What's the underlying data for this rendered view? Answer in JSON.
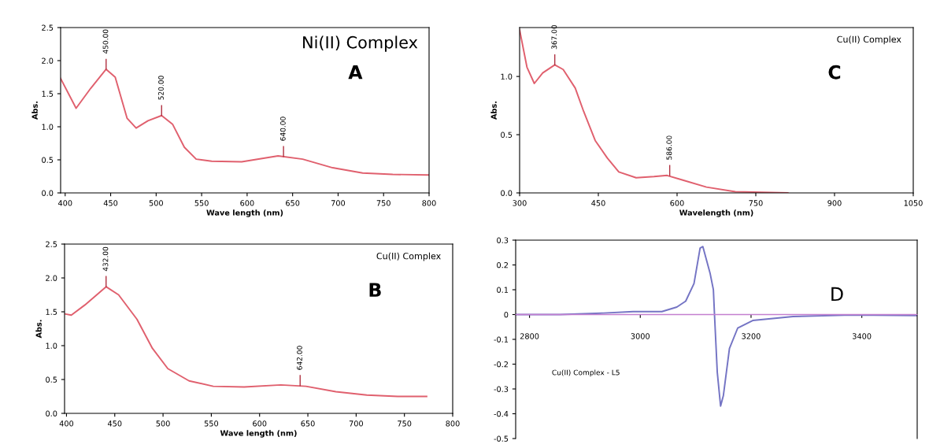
{
  "chart_data": [
    {
      "type": "line",
      "title": "Ni(II) Complex",
      "xlabel": "Wave length (nm)",
      "ylabel": "Abs.",
      "xlim": [
        395,
        800
      ],
      "xticks": [
        400,
        450,
        500,
        550,
        600,
        650,
        700,
        750,
        800
      ],
      "ylim": [
        0,
        2.5
      ],
      "yticks": [
        {
          "value": 0,
          "label": "0.0"
        },
        0.5,
        {
          "value": 1,
          "label": "1.0"
        },
        1.5,
        {
          "value": 2,
          "label": "2.0"
        },
        2.5
      ],
      "grid": false,
      "legend": false,
      "marker": "none",
      "line_style": "solid",
      "series": [
        {
          "color": "#e0606e",
          "x": [
            395,
            412,
            428,
            445,
            455,
            468,
            478,
            491,
            506,
            518,
            531,
            544,
            561,
            594,
            634,
            661,
            694,
            727,
            760,
            800
          ],
          "values": [
            1.73,
            1.28,
            1.58,
            1.87,
            1.75,
            1.13,
            0.98,
            1.09,
            1.17,
            1.04,
            0.69,
            0.51,
            0.48,
            0.47,
            0.56,
            0.51,
            0.38,
            0.3,
            0.28,
            0.27
          ]
        }
      ],
      "annotations": [
        "A",
        {
          "text": "450.00",
          "x": 445,
          "y": 1.87
        },
        {
          "text": "520.00",
          "x": 506,
          "y": 1.17
        },
        {
          "text": "640.00",
          "x": 640,
          "y": 0.55
        }
      ]
    },
    {
      "type": "line",
      "title": "Cu(II) Complex",
      "xlabel": "Wavelength (nm)",
      "ylabel": "Abs.",
      "xlim": [
        300,
        1050
      ],
      "xticks": [
        300,
        450,
        600,
        750,
        900,
        1050
      ],
      "ylim": [
        0,
        1.42
      ],
      "yticks": [
        {
          "value": 0,
          "label": "0.0"
        },
        0.5,
        {
          "value": 1,
          "label": "1.0"
        }
      ],
      "grid": false,
      "legend": false,
      "marker": "none",
      "line_style": "solid",
      "series": [
        {
          "color": "#e0606e",
          "x": [
            300,
            314,
            328,
            344,
            367,
            383,
            406,
            422,
            444,
            467,
            489,
            522,
            556,
            581,
            611,
            656,
            711,
            811
          ],
          "values": [
            1.4,
            1.08,
            0.94,
            1.03,
            1.1,
            1.06,
            0.9,
            0.7,
            0.45,
            0.3,
            0.18,
            0.13,
            0.14,
            0.15,
            0.11,
            0.05,
            0.01,
            0.0
          ]
        }
      ],
      "annotations": [
        "C",
        {
          "text": "367.00",
          "x": 367,
          "y": 1.1
        },
        {
          "text": "586.00",
          "x": 586,
          "y": 0.15
        }
      ]
    },
    {
      "type": "line",
      "title": "Cu(II) Complex",
      "xlabel": "Wave length (nm)",
      "ylabel": "Abs.",
      "xlim": [
        398,
        800
      ],
      "xticks": [
        400,
        450,
        500,
        550,
        600,
        650,
        700,
        750,
        800
      ],
      "ylim": [
        0,
        2.5
      ],
      "yticks": [
        {
          "value": 0,
          "label": "0.0"
        },
        0.5,
        {
          "value": 1,
          "label": "1.0"
        },
        1.5,
        {
          "value": 2,
          "label": "2.0"
        },
        2.5
      ],
      "grid": false,
      "legend": false,
      "marker": "none",
      "line_style": "solid",
      "series": [
        {
          "color": "#e0606e",
          "x": [
            398,
            405,
            419,
            441,
            454,
            473,
            489,
            505,
            527,
            552,
            584,
            622,
            648,
            679,
            711,
            743,
            773
          ],
          "values": [
            1.47,
            1.45,
            1.6,
            1.87,
            1.75,
            1.39,
            0.96,
            0.66,
            0.48,
            0.4,
            0.39,
            0.42,
            0.4,
            0.32,
            0.27,
            0.25,
            0.25
          ]
        }
      ],
      "annotations": [
        "B",
        {
          "text": "432.00",
          "x": 441,
          "y": 1.87
        },
        {
          "text": "642.00",
          "x": 642,
          "y": 0.41
        }
      ]
    },
    {
      "type": "line",
      "xlim": [
        2775,
        3500
      ],
      "xticks": [
        2800,
        3000,
        3200,
        3400
      ],
      "ylim": [
        -0.5,
        0.3
      ],
      "yticks": [
        -0.5,
        -0.4,
        -0.3,
        -0.2,
        -0.1,
        0,
        0.1,
        0.2,
        0.3
      ],
      "grid": false,
      "legend": false,
      "marker": "none",
      "line_style": "solid",
      "ref_lines": [
        {
          "axis": "y",
          "value": 0,
          "color": "#c47fd0"
        }
      ],
      "series": [
        {
          "color": "#7474c4",
          "x": [
            2776,
            2855,
            2934,
            2987,
            3039,
            3066,
            3082,
            3097,
            3108,
            3113,
            3121,
            3126,
            3132,
            3134,
            3139,
            3145,
            3150,
            3161,
            3176,
            3203,
            3276,
            3382,
            3500
          ],
          "values": [
            0,
            0,
            0.006,
            0.012,
            0.012,
            0.03,
            0.054,
            0.125,
            0.268,
            0.274,
            0.208,
            0.167,
            0.1,
            0,
            -0.232,
            -0.369,
            -0.327,
            -0.137,
            -0.054,
            -0.024,
            -0.008,
            -0.002,
            -0.004
          ]
        }
      ],
      "annotations": [
        "D",
        "Cu(II) Complex - L5"
      ]
    }
  ]
}
